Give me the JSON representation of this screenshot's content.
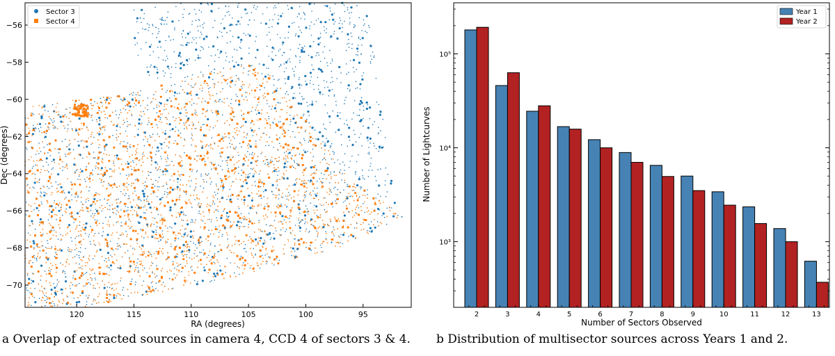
{
  "captions": {
    "a": "a Overlap of extracted sources in camera 4, CCD 4 of sectors 3 & 4.",
    "b": "b Distribution of multisector sources across Years 1 and 2."
  },
  "chart_data": [
    {
      "type": "scatter",
      "xlabel": "RA (degrees)",
      "ylabel": "Dec (degrees)",
      "xlim": [
        124.5,
        90.8
      ],
      "ylim": [
        -71.2,
        -54.8
      ],
      "xticks": [
        120,
        115,
        110,
        105,
        100,
        95
      ],
      "yticks": [
        -56,
        -58,
        -60,
        -62,
        -64,
        -66,
        -68,
        -70
      ],
      "legend": {
        "placement": "top-left"
      },
      "series": [
        {
          "name": "Sector 3",
          "color": "#1f77b4",
          "marker": "circle",
          "region_vertices": [
            [
              115.3,
              -54.8
            ],
            [
              94.7,
              -54.8
            ],
            [
              92.2,
              -65.7
            ],
            [
              91.2,
              -66.2
            ],
            [
              114.0,
              -58.6
            ],
            [
              115.0,
              -57.3
            ]
          ]
        },
        {
          "name": "Sector 4",
          "color": "#ff7f0e",
          "marker": "square",
          "region_vertices": [
            [
              124.5,
              -60.3
            ],
            [
              115.5,
              -59.7
            ],
            [
              104.0,
              -57.9
            ],
            [
              96.0,
              -64.4
            ],
            [
              91.3,
              -66.3
            ],
            [
              97.5,
              -68.1
            ],
            [
              107.0,
              -69.7
            ],
            [
              119.5,
              -71.2
            ],
            [
              124.5,
              -71.2
            ]
          ]
        }
      ]
    },
    {
      "type": "bar",
      "xlabel": "Number of Sectors Observed",
      "ylabel": "Number of Lightcurves",
      "yscale": "log",
      "ylim": [
        200,
        350000
      ],
      "ytick_labels": [
        "10³",
        "10⁴",
        "10⁵"
      ],
      "ytick_values": [
        1000,
        10000,
        100000
      ],
      "categories": [
        "2",
        "3",
        "4",
        "5",
        "6",
        "7",
        "8",
        "9",
        "10",
        "11",
        "12",
        "13"
      ],
      "legend": {
        "placement": "top-right"
      },
      "series": [
        {
          "name": "Year 1",
          "color": "#4682b4",
          "values": [
            180000,
            46000,
            24500,
            16800,
            12200,
            8900,
            6500,
            5000,
            3400,
            2350,
            1380,
            620
          ]
        },
        {
          "name": "Year 2",
          "color": "#b22222",
          "values": [
            192000,
            63000,
            28000,
            15800,
            10000,
            7000,
            4950,
            3500,
            2450,
            1560,
            1000,
            370
          ]
        }
      ]
    }
  ]
}
